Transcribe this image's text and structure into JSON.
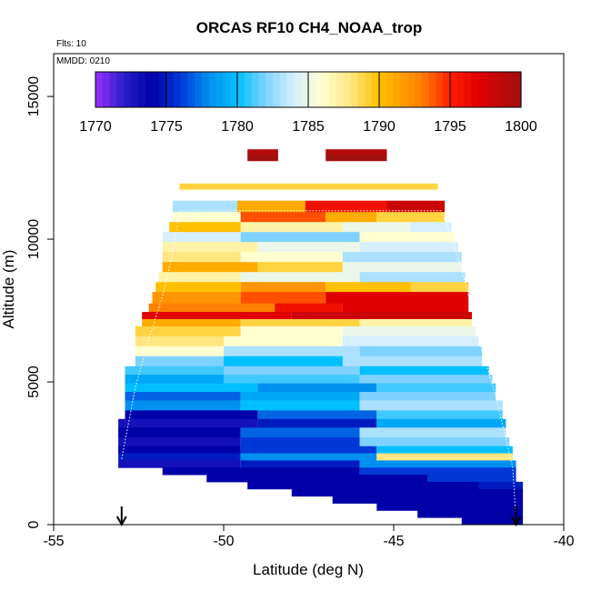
{
  "chart_data": {
    "type": "heatmap",
    "title": "ORCAS RF10 CH4_NOAA_trop",
    "annotations": {
      "flights": "Flts: 10",
      "date": "MMDD: 0210"
    },
    "xlabel": "Latitude (deg N)",
    "ylabel": "Altitude (m)",
    "xlim": [
      -55,
      -40
    ],
    "ylim": [
      0,
      16500
    ],
    "x_ticks": [
      -55,
      -50,
      -45,
      -40
    ],
    "x_tick_labels": [
      "-55",
      "-50",
      "-45",
      "-40"
    ],
    "y_ticks": [
      0,
      5000,
      10000,
      15000
    ],
    "y_tick_labels": [
      "0",
      "5000",
      "10000",
      "15000"
    ],
    "grid": false,
    "colorbar": {
      "placement": "top",
      "range": [
        1770,
        1800
      ],
      "ticks": [
        1770,
        1775,
        1780,
        1785,
        1790,
        1795,
        1800
      ],
      "tick_labels": [
        "1770",
        "1775",
        "1780",
        "1785",
        "1790",
        "1795",
        "1800"
      ],
      "stops": [
        {
          "v": 1770,
          "color": "#9b30ff"
        },
        {
          "v": 1772,
          "color": "#2a1fc8"
        },
        {
          "v": 1774,
          "color": "#0000a8"
        },
        {
          "v": 1776,
          "color": "#0038d8"
        },
        {
          "v": 1778,
          "color": "#0090f0"
        },
        {
          "v": 1780,
          "color": "#00bfff"
        },
        {
          "v": 1782,
          "color": "#7fd2ff"
        },
        {
          "v": 1784,
          "color": "#d6efff"
        },
        {
          "v": 1786,
          "color": "#ffffd0"
        },
        {
          "v": 1788,
          "color": "#ffe680"
        },
        {
          "v": 1790,
          "color": "#ffc000"
        },
        {
          "v": 1793,
          "color": "#ff8000"
        },
        {
          "v": 1795,
          "color": "#ff2000"
        },
        {
          "v": 1797,
          "color": "#e00000"
        },
        {
          "v": 1800,
          "color": "#a01010"
        }
      ]
    },
    "markers": [
      {
        "type": "arrow-down",
        "lat": -53.0
      },
      {
        "type": "arrow-down",
        "lat": -41.4
      }
    ],
    "band_rows": [
      {
        "alt_lo": 12950,
        "alt_hi": 13150,
        "segs": [
          [
            -49.3,
            -48.4,
            1799
          ],
          [
            -47.0,
            -45.2,
            1799
          ]
        ]
      },
      {
        "alt_lo": 12750,
        "alt_hi": 12950,
        "segs": [
          [
            -49.3,
            -48.4,
            1800
          ],
          [
            -47.0,
            -45.2,
            1800
          ]
        ]
      },
      {
        "alt_lo": 11750,
        "alt_hi": 11950,
        "segs": [
          [
            -51.3,
            -43.7,
            1789
          ]
        ]
      },
      {
        "alt_lo": 10950,
        "alt_hi": 11350,
        "segs": [
          [
            -51.5,
            -49.6,
            1783
          ],
          [
            -49.6,
            -47.6,
            1791
          ],
          [
            -47.6,
            -45.2,
            1796
          ],
          [
            -45.2,
            -43.5,
            1798
          ]
        ]
      },
      {
        "alt_lo": 10600,
        "alt_hi": 10950,
        "segs": [
          [
            -51.5,
            -49.5,
            1786
          ],
          [
            -49.5,
            -47.0,
            1794
          ],
          [
            -47.0,
            -45.5,
            1791
          ],
          [
            -45.5,
            -43.5,
            1789
          ]
        ]
      },
      {
        "alt_lo": 10250,
        "alt_hi": 10600,
        "segs": [
          [
            -51.6,
            -49.5,
            1790
          ],
          [
            -49.5,
            -46.5,
            1787
          ],
          [
            -46.5,
            -44.5,
            1785
          ],
          [
            -44.5,
            -43.3,
            1784
          ]
        ]
      },
      {
        "alt_lo": 9900,
        "alt_hi": 10250,
        "segs": [
          [
            -51.8,
            -49.5,
            1784
          ],
          [
            -49.5,
            -46.0,
            1782
          ],
          [
            -46.0,
            -43.2,
            1786
          ]
        ]
      },
      {
        "alt_lo": 9550,
        "alt_hi": 9900,
        "segs": [
          [
            -51.8,
            -49.0,
            1787
          ],
          [
            -49.0,
            -46.0,
            1785
          ],
          [
            -46.0,
            -43.1,
            1784
          ]
        ]
      },
      {
        "alt_lo": 9200,
        "alt_hi": 9550,
        "segs": [
          [
            -51.8,
            -49.5,
            1788
          ],
          [
            -49.5,
            -46.5,
            1786
          ],
          [
            -46.5,
            -43.0,
            1783
          ]
        ]
      },
      {
        "alt_lo": 8850,
        "alt_hi": 9200,
        "segs": [
          [
            -51.8,
            -49.0,
            1791
          ],
          [
            -49.0,
            -46.5,
            1789
          ],
          [
            -46.5,
            -43.0,
            1785
          ]
        ]
      },
      {
        "alt_lo": 8500,
        "alt_hi": 8850,
        "segs": [
          [
            -51.9,
            -49.5,
            1787
          ],
          [
            -49.5,
            -46.0,
            1785
          ],
          [
            -46.0,
            -42.9,
            1783
          ]
        ]
      },
      {
        "alt_lo": 8150,
        "alt_hi": 8500,
        "segs": [
          [
            -52.0,
            -49.5,
            1790
          ],
          [
            -49.5,
            -47.0,
            1792
          ],
          [
            -47.0,
            -44.5,
            1790
          ],
          [
            -44.5,
            -42.8,
            1789
          ]
        ]
      },
      {
        "alt_lo": 7750,
        "alt_hi": 8150,
        "segs": [
          [
            -52.1,
            -49.5,
            1792
          ],
          [
            -49.5,
            -47.0,
            1794
          ],
          [
            -47.0,
            -42.8,
            1797
          ]
        ]
      },
      {
        "alt_lo": 7450,
        "alt_hi": 7750,
        "segs": [
          [
            -52.2,
            -48.5,
            1793
          ],
          [
            -48.5,
            -46.5,
            1796
          ],
          [
            -46.5,
            -42.8,
            1797
          ]
        ]
      },
      {
        "alt_lo": 7200,
        "alt_hi": 7450,
        "segs": [
          [
            -52.4,
            -48.0,
            1797
          ],
          [
            -48.0,
            -42.7,
            1798
          ]
        ]
      },
      {
        "alt_lo": 6950,
        "alt_hi": 7200,
        "segs": [
          [
            -52.4,
            -49.5,
            1791
          ],
          [
            -49.5,
            -46.0,
            1789
          ],
          [
            -46.0,
            -42.7,
            1787
          ]
        ]
      },
      {
        "alt_lo": 6600,
        "alt_hi": 6950,
        "segs": [
          [
            -52.6,
            -49.5,
            1789
          ],
          [
            -49.5,
            -46.5,
            1786
          ],
          [
            -46.5,
            -42.6,
            1785
          ]
        ]
      },
      {
        "alt_lo": 6250,
        "alt_hi": 6600,
        "segs": [
          [
            -52.6,
            -50.0,
            1788
          ],
          [
            -50.0,
            -46.5,
            1786
          ],
          [
            -46.5,
            -42.5,
            1784
          ]
        ]
      },
      {
        "alt_lo": 5900,
        "alt_hi": 6250,
        "segs": [
          [
            -52.6,
            -50.0,
            1786
          ],
          [
            -50.0,
            -46.0,
            1783
          ],
          [
            -46.0,
            -42.4,
            1782
          ]
        ]
      },
      {
        "alt_lo": 5550,
        "alt_hi": 5900,
        "segs": [
          [
            -52.6,
            -50.0,
            1782
          ],
          [
            -50.0,
            -46.5,
            1780
          ],
          [
            -46.5,
            -42.4,
            1783
          ]
        ]
      },
      {
        "alt_lo": 5250,
        "alt_hi": 5550,
        "segs": [
          [
            -52.9,
            -50.0,
            1781
          ],
          [
            -50.0,
            -46.0,
            1782
          ],
          [
            -46.0,
            -42.2,
            1780
          ]
        ]
      },
      {
        "alt_lo": 4950,
        "alt_hi": 5250,
        "segs": [
          [
            -52.9,
            -50.0,
            1779
          ],
          [
            -50.0,
            -46.0,
            1781
          ],
          [
            -46.0,
            -42.1,
            1782
          ]
        ]
      },
      {
        "alt_lo": 4650,
        "alt_hi": 4950,
        "segs": [
          [
            -52.9,
            -49.0,
            1780
          ],
          [
            -49.0,
            -45.5,
            1778
          ],
          [
            -45.5,
            -42.0,
            1781
          ]
        ]
      },
      {
        "alt_lo": 4350,
        "alt_hi": 4650,
        "segs": [
          [
            -52.9,
            -49.5,
            1777
          ],
          [
            -49.5,
            -46.0,
            1779
          ],
          [
            -46.0,
            -42.0,
            1782
          ]
        ]
      },
      {
        "alt_lo": 4000,
        "alt_hi": 4350,
        "segs": [
          [
            -52.9,
            -49.5,
            1778
          ],
          [
            -49.5,
            -46.0,
            1780
          ],
          [
            -46.0,
            -41.8,
            1783
          ]
        ]
      },
      {
        "alt_lo": 3700,
        "alt_hi": 4000,
        "segs": [
          [
            -52.9,
            -49.0,
            1774
          ],
          [
            -49.0,
            -45.5,
            1777
          ],
          [
            -45.5,
            -41.8,
            1781
          ]
        ]
      },
      {
        "alt_lo": 3400,
        "alt_hi": 3700,
        "segs": [
          [
            -53.1,
            -49.0,
            1773
          ],
          [
            -49.0,
            -45.5,
            1775
          ],
          [
            -45.5,
            -41.7,
            1779
          ]
        ]
      },
      {
        "alt_lo": 3050,
        "alt_hi": 3400,
        "segs": [
          [
            -53.1,
            -49.5,
            1774
          ],
          [
            -49.5,
            -46.0,
            1777
          ],
          [
            -46.0,
            -41.7,
            1783
          ]
        ]
      },
      {
        "alt_lo": 2750,
        "alt_hi": 3050,
        "segs": [
          [
            -53.1,
            -49.5,
            1773
          ],
          [
            -49.5,
            -46.0,
            1776
          ],
          [
            -46.0,
            -41.6,
            1782
          ]
        ]
      },
      {
        "alt_lo": 2500,
        "alt_hi": 2750,
        "segs": [
          [
            -53.1,
            -49.5,
            1774
          ],
          [
            -49.5,
            -45.5,
            1776
          ],
          [
            -45.5,
            -41.5,
            1780
          ]
        ]
      },
      {
        "alt_lo": 2250,
        "alt_hi": 2500,
        "segs": [
          [
            -53.1,
            -49.5,
            1775
          ],
          [
            -49.5,
            -45.5,
            1778
          ],
          [
            -45.5,
            -41.5,
            1788
          ]
        ]
      },
      {
        "alt_lo": 2000,
        "alt_hi": 2250,
        "segs": [
          [
            -53.1,
            -49.5,
            1773
          ],
          [
            -49.5,
            -46.0,
            1775
          ],
          [
            -46.0,
            -41.4,
            1778
          ]
        ]
      },
      {
        "alt_lo": 1750,
        "alt_hi": 2000,
        "segs": [
          [
            -51.8,
            -46.0,
            1774
          ],
          [
            -46.0,
            -41.4,
            1776
          ]
        ]
      },
      {
        "alt_lo": 1500,
        "alt_hi": 1750,
        "segs": [
          [
            -50.5,
            -44.0,
            1774
          ],
          [
            -44.0,
            -41.4,
            1776
          ]
        ]
      },
      {
        "alt_lo": 1250,
        "alt_hi": 1500,
        "segs": [
          [
            -49.3,
            -42.5,
            1774
          ],
          [
            -42.5,
            -41.2,
            1775
          ]
        ]
      },
      {
        "alt_lo": 1000,
        "alt_hi": 1250,
        "segs": [
          [
            -48.0,
            -41.2,
            1774
          ]
        ]
      },
      {
        "alt_lo": 750,
        "alt_hi": 1000,
        "segs": [
          [
            -46.8,
            -41.2,
            1774
          ]
        ]
      },
      {
        "alt_lo": 500,
        "alt_hi": 750,
        "segs": [
          [
            -45.5,
            -41.2,
            1774
          ]
        ]
      },
      {
        "alt_lo": 250,
        "alt_hi": 500,
        "segs": [
          [
            -44.3,
            -41.2,
            1774
          ]
        ]
      },
      {
        "alt_lo": 0,
        "alt_hi": 250,
        "segs": [
          [
            -43.0,
            -41.2,
            1774
          ]
        ]
      }
    ],
    "flight_track": [
      [
        -53.0,
        2300
      ],
      [
        -52.6,
        4800
      ],
      [
        -52.2,
        6500
      ],
      [
        -51.8,
        8000
      ],
      [
        -51.5,
        9500
      ],
      [
        -51.3,
        11000
      ],
      [
        -43.6,
        11000
      ],
      [
        -43.2,
        9700
      ],
      [
        -42.9,
        8500
      ],
      [
        -42.5,
        6500
      ],
      [
        -42.0,
        4500
      ],
      [
        -41.5,
        2000
      ],
      [
        -41.4,
        150
      ]
    ]
  }
}
